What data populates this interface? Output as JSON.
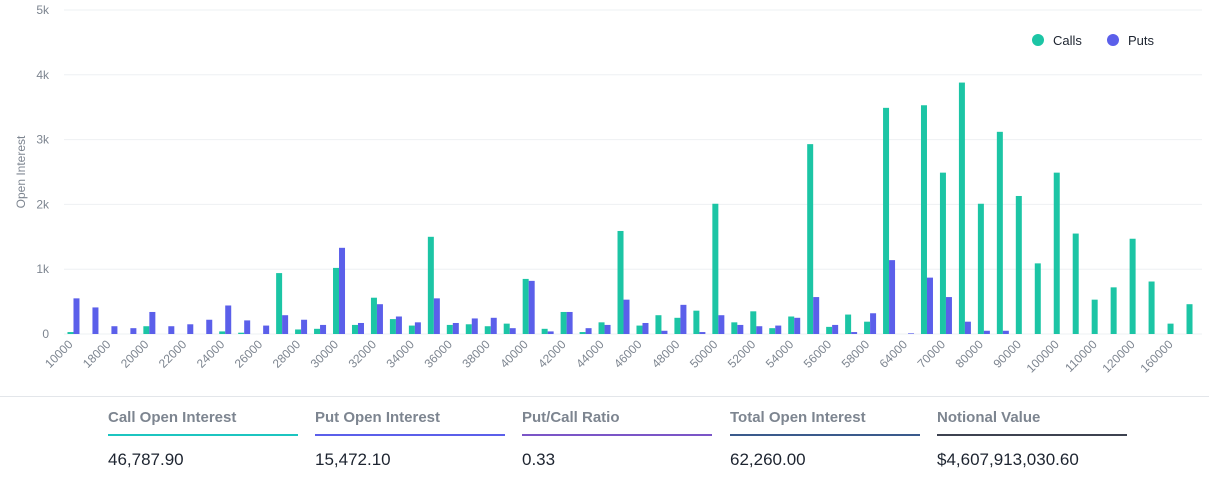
{
  "chart_data": {
    "type": "bar",
    "ylabel": "Open Interest",
    "ylim": [
      0,
      5000
    ],
    "yticks": [
      "0",
      "1k",
      "2k",
      "3k",
      "4k",
      "5k"
    ],
    "legend": {
      "placement": "top-right",
      "items": [
        "Calls",
        "Puts"
      ]
    },
    "categories": [
      "10000",
      "16000",
      "18000",
      "19000",
      "20000",
      "21000",
      "22000",
      "23000",
      "24000",
      "25000",
      "26000",
      "27000",
      "28000",
      "29000",
      "30000",
      "31000",
      "32000",
      "33000",
      "34000",
      "35000",
      "36000",
      "37000",
      "38000",
      "39000",
      "40000",
      "41000",
      "42000",
      "43000",
      "44000",
      "45000",
      "46000",
      "47000",
      "48000",
      "49000",
      "50000",
      "51000",
      "52000",
      "53000",
      "54000",
      "55000",
      "56000",
      "57000",
      "58000",
      "60000",
      "64000",
      "65000",
      "70000",
      "75000",
      "80000",
      "85000",
      "90000",
      "95000",
      "100000",
      "105000",
      "110000",
      "115000",
      "120000",
      "150000",
      "160000",
      "200000"
    ],
    "xtick_labels": [
      "10000",
      "18000",
      "20000",
      "22000",
      "24000",
      "26000",
      "28000",
      "30000",
      "32000",
      "34000",
      "36000",
      "38000",
      "40000",
      "42000",
      "44000",
      "46000",
      "48000",
      "50000",
      "52000",
      "54000",
      "56000",
      "58000",
      "64000",
      "70000",
      "80000",
      "90000",
      "100000",
      "110000",
      "120000",
      "160000"
    ],
    "series": [
      {
        "name": "Calls",
        "color": "#1cc5a5",
        "values": [
          30,
          0,
          0,
          0,
          120,
          0,
          0,
          0,
          40,
          20,
          0,
          940,
          70,
          80,
          1020,
          140,
          560,
          230,
          130,
          1500,
          140,
          150,
          120,
          160,
          850,
          80,
          340,
          30,
          180,
          1590,
          130,
          290,
          250,
          360,
          2010,
          180,
          350,
          90,
          270,
          2930,
          110,
          300,
          190,
          3490,
          0,
          3530,
          2490,
          3880,
          2010,
          3120,
          2130,
          1090,
          2490,
          1550,
          530,
          720,
          1470,
          810,
          160,
          460
        ]
      },
      {
        "name": "Puts",
        "color": "#5b5fea",
        "values": [
          550,
          410,
          120,
          90,
          340,
          120,
          150,
          220,
          440,
          210,
          130,
          290,
          220,
          140,
          1330,
          170,
          460,
          270,
          180,
          550,
          170,
          240,
          250,
          90,
          820,
          40,
          340,
          90,
          140,
          530,
          170,
          50,
          450,
          30,
          290,
          140,
          120,
          130,
          250,
          570,
          140,
          30,
          320,
          1140,
          10,
          870,
          570,
          190,
          50,
          50,
          0,
          0,
          0,
          0,
          0,
          0,
          0,
          0,
          0,
          0
        ]
      }
    ]
  },
  "stats": [
    {
      "label": "Call Open Interest",
      "value": "46,787.90",
      "color": "#1cc5c0"
    },
    {
      "label": "Put Open Interest",
      "value": "15,472.10",
      "color": "#5b5fea"
    },
    {
      "label": "Put/Call Ratio",
      "value": "0.33",
      "color": "#7b55c7"
    },
    {
      "label": "Total Open Interest",
      "value": "62,260.00",
      "color": "#3a5a8c"
    },
    {
      "label": "Notional Value",
      "value": "$4,607,913,030.60",
      "color": "#3d4250"
    }
  ]
}
